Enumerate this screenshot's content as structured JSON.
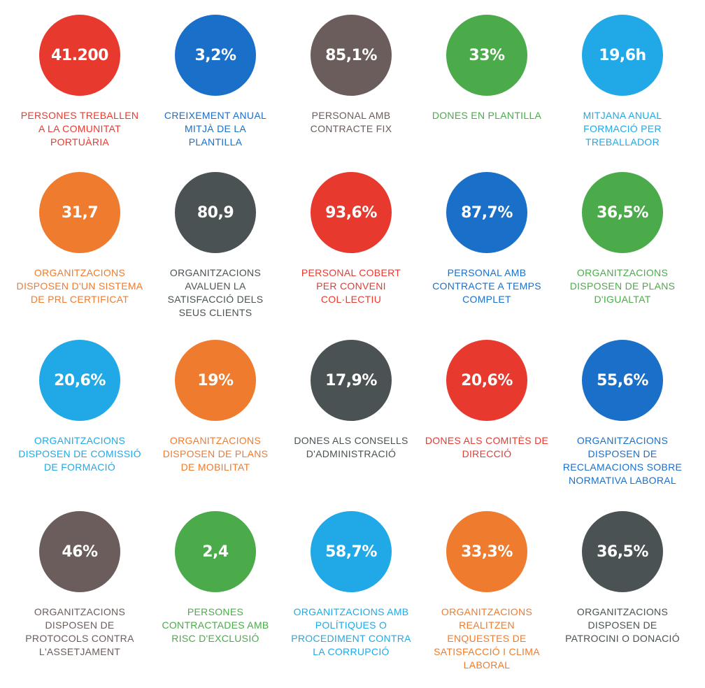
{
  "colors": {
    "red": "#e8392f",
    "blue": "#1a6fc9",
    "taupe": "#6b5d5b",
    "green": "#4bab4a",
    "cyan": "#20a9e6",
    "orange": "#ef7b2e",
    "charcoal": "#4a5254"
  },
  "stats": [
    {
      "value": "41.200",
      "label": "PERSONES TREBALLEN\nA LA COMUNITAT\nPORTUÀRIA",
      "color": "#e8392f"
    },
    {
      "value": "3,2%",
      "label": "CREIXEMENT ANUAL\nMITJÀ DE LA\nPLANTILLA",
      "color": "#1a6fc9"
    },
    {
      "value": "85,1%",
      "label": "PERSONAL AMB\nCONTRACTE FIX",
      "color": "#6b5d5b"
    },
    {
      "value": "33%",
      "label": "DONES EN PLANTILLA",
      "color": "#4bab4a"
    },
    {
      "value": "19,6h",
      "label": "MITJANA ANUAL\nFORMACIÓ PER\nTREBALLADOR",
      "color": "#20a9e6"
    },
    {
      "value": "31,7",
      "label": "ORGANITZACIONS\nDISPOSEN D'UN SISTEMA\nDE PRL CERTIFICAT",
      "color": "#ef7b2e"
    },
    {
      "value": "80,9",
      "label": "ORGANITZACIONS\nAVALUEN LA\nSATISFACCIÓ DELS\nSEUS CLIENTS",
      "color": "#4a5254"
    },
    {
      "value": "93,6%",
      "label": "PERSONAL COBERT\nPER CONVENI\nCOL·LECTIU",
      "color": "#e8392f"
    },
    {
      "value": "87,7%",
      "label": "PERSONAL AMB\nCONTRACTE A TEMPS\nCOMPLET",
      "color": "#1a6fc9"
    },
    {
      "value": "36,5%",
      "label": "ORGANITZACIONS\nDISPOSEN DE PLANS\nD'IGUALTAT",
      "color": "#4bab4a"
    },
    {
      "value": "20,6%",
      "label": "ORGANITZACIONS\nDISPOSEN DE COMISSIÓ\nDE FORMACIÓ",
      "color": "#20a9e6"
    },
    {
      "value": "19%",
      "label": "ORGANITZACIONS\nDISPOSEN DE PLANS\nDE MOBILITAT",
      "color": "#ef7b2e"
    },
    {
      "value": "17,9%",
      "label": "DONES ALS CONSELLS\nD'ADMINISTRACIÓ",
      "color": "#4a5254"
    },
    {
      "value": "20,6%",
      "label": "DONES ALS COMITÈS DE\nDIRECCIÓ",
      "color": "#e8392f"
    },
    {
      "value": "55,6%",
      "label": "ORGANITZACIONS\nDISPOSEN DE\nRECLAMACIONS SOBRE\nNORMATIVA LABORAL",
      "color": "#1a6fc9"
    },
    {
      "value": "46%",
      "label": "ORGANITZACIONS\nDISPOSEN DE\nPROTOCOLS CONTRA\nL'ASSETJAMENT",
      "color": "#6b5d5b"
    },
    {
      "value": "2,4",
      "label": "PERSONES\nCONTRACTADES AMB\nRISC D'EXCLUSIÓ",
      "color": "#4bab4a"
    },
    {
      "value": "58,7%",
      "label": "ORGANITZACIONS AMB\nPOLÍTIQUES O\nPROCEDIMENT CONTRA\nLA CORRUPCIÓ",
      "color": "#20a9e6"
    },
    {
      "value": "33,3%",
      "label": "ORGANITZACIONS\nREALITZEN\nENQUESTES DE\nSATISFACCIÓ I CLIMA\nLABORAL",
      "color": "#ef7b2e"
    },
    {
      "value": "36,5%",
      "label": "ORGANITZACIONS\nDISPOSEN DE\nPATROCINI O DONACIÓ",
      "color": "#4a5254"
    }
  ]
}
